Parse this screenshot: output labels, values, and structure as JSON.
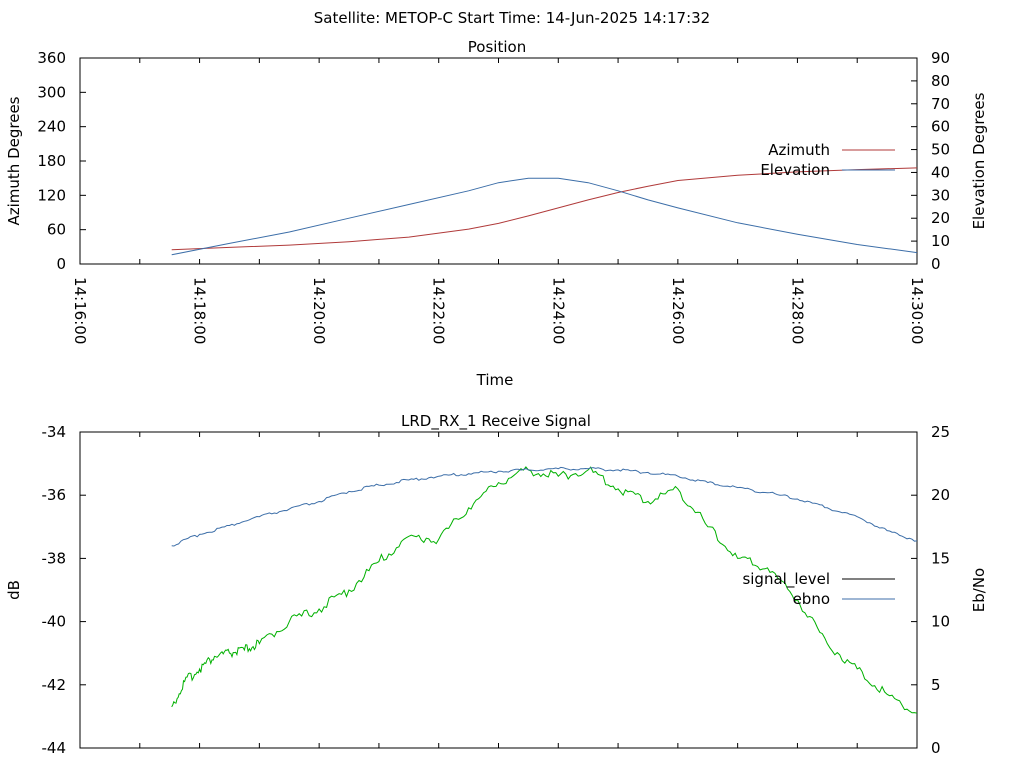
{
  "page": {
    "title": "Satellite: METOP-C    Start Time: 14-Jun-2025 14:17:32"
  },
  "chart_data": [
    {
      "type": "line",
      "title": "Position",
      "xlabel": "Time",
      "ylabel": "Azimuth Degrees",
      "y2label": "Elevation Degrees",
      "x_ticks": [
        "14:16:00",
        "14:18:00",
        "14:20:00",
        "14:22:00",
        "14:24:00",
        "14:26:00",
        "14:28:00",
        "14:30:00"
      ],
      "xlim": [
        "14:16:00",
        "14:30:00"
      ],
      "ylim": [
        0,
        360
      ],
      "y_ticks": [
        "0",
        "60",
        "120",
        "180",
        "240",
        "300",
        "360"
      ],
      "y2lim": [
        0,
        90
      ],
      "y2_ticks": [
        "0",
        "10",
        "20",
        "30",
        "40",
        "50",
        "60",
        "70",
        "80",
        "90"
      ],
      "legend_position": "right",
      "series": [
        {
          "name": "Azimuth",
          "axis": "y",
          "color": "#b03a3a",
          "x": [
            "14:17:32",
            "14:18:30",
            "14:19:30",
            "14:20:30",
            "14:21:30",
            "14:22:30",
            "14:23:00",
            "14:23:30",
            "14:24:00",
            "14:24:30",
            "14:25:00",
            "14:25:30",
            "14:26:00",
            "14:27:00",
            "14:28:00",
            "14:29:00",
            "14:30:00"
          ],
          "values": [
            25,
            29,
            33,
            39,
            47,
            61,
            71,
            84,
            98,
            112,
            125,
            136,
            146,
            155,
            161,
            165,
            168
          ]
        },
        {
          "name": "Elevation",
          "axis": "y2",
          "color": "#3c6ea8",
          "x": [
            "14:17:32",
            "14:18:30",
            "14:19:30",
            "14:20:30",
            "14:21:30",
            "14:22:30",
            "14:23:00",
            "14:23:30",
            "14:24:00",
            "14:24:30",
            "14:25:00",
            "14:25:30",
            "14:26:00",
            "14:27:00",
            "14:28:00",
            "14:29:00",
            "14:30:00"
          ],
          "values": [
            4,
            9,
            14,
            20,
            26,
            32,
            35.5,
            37.5,
            37.5,
            35.5,
            32,
            28,
            24.5,
            18,
            13,
            8.5,
            5
          ]
        }
      ]
    },
    {
      "type": "line",
      "title": "LRD_RX_1 Receive Signal",
      "xlabel": "",
      "ylabel": "dB",
      "y2label": "Eb/No",
      "xlim": [
        "14:16:00",
        "14:30:00"
      ],
      "ylim": [
        -44,
        -34
      ],
      "y_ticks": [
        "-44",
        "-42",
        "-40",
        "-38",
        "-36",
        "-34"
      ],
      "y2lim": [
        0,
        25
      ],
      "y2_ticks": [
        "0",
        "5",
        "10",
        "15",
        "20",
        "25"
      ],
      "legend_position": "right",
      "series": [
        {
          "name": "signal_level",
          "axis": "y",
          "color": "#00b000",
          "legend_color": "#000000",
          "x": [
            "14:17:32",
            "14:17:45",
            "14:18:00",
            "14:18:15",
            "14:18:30",
            "14:18:45",
            "14:19:00",
            "14:19:30",
            "14:20:00",
            "14:20:30",
            "14:21:00",
            "14:21:30",
            "14:22:00",
            "14:22:30",
            "14:23:00",
            "14:23:30",
            "14:24:00",
            "14:24:30",
            "14:25:00",
            "14:25:30",
            "14:26:00",
            "14:26:30",
            "14:27:00",
            "14:27:30",
            "14:28:00",
            "14:28:30",
            "14:29:00",
            "14:29:30",
            "14:30:00"
          ],
          "values": [
            -42.7,
            -41.9,
            -41.5,
            -41.1,
            -41.0,
            -40.9,
            -40.7,
            -40.0,
            -39.6,
            -39.0,
            -38.1,
            -37.3,
            -37.4,
            -36.4,
            -35.6,
            -35.2,
            -35.4,
            -35.2,
            -35.8,
            -36.2,
            -35.8,
            -37.0,
            -38.0,
            -38.3,
            -39.3,
            -40.7,
            -41.5,
            -42.3,
            -42.9
          ]
        },
        {
          "name": "ebno",
          "axis": "y2",
          "color": "#3c6ea8",
          "x": [
            "14:17:32",
            "14:18:00",
            "14:18:30",
            "14:19:00",
            "14:19:30",
            "14:20:00",
            "14:20:30",
            "14:21:00",
            "14:21:30",
            "14:22:00",
            "14:22:30",
            "14:23:00",
            "14:23:30",
            "14:24:00",
            "14:24:30",
            "14:25:00",
            "14:25:30",
            "14:26:00",
            "14:26:30",
            "14:27:00",
            "14:27:30",
            "14:28:00",
            "14:28:30",
            "14:29:00",
            "14:29:30",
            "14:30:00"
          ],
          "values": [
            16.0,
            16.9,
            17.6,
            18.3,
            18.9,
            19.5,
            20.3,
            20.8,
            21.2,
            21.5,
            21.7,
            21.9,
            22.0,
            22.1,
            22.1,
            22.0,
            21.8,
            21.5,
            21.0,
            20.6,
            20.2,
            19.7,
            19.0,
            18.3,
            17.2,
            16.4
          ]
        }
      ]
    }
  ]
}
